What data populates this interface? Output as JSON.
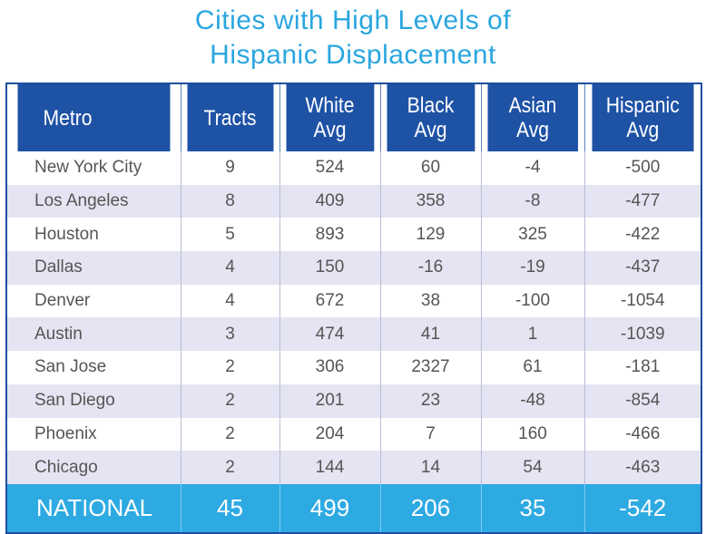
{
  "title": [
    "Cities with High Levels of",
    "Hispanic Displacement"
  ],
  "colors": {
    "title": "#2aa6df",
    "header": "#1e52a5",
    "national": "#2eaae2",
    "stripe": "#e4e4f2"
  },
  "chart_data": {
    "type": "table",
    "title": "Cities with High Levels of Hispanic Displacement",
    "columns": [
      "Metro",
      "Tracts",
      "White Avg",
      "Black Avg",
      "Asian Avg",
      "Hispanic Avg"
    ],
    "rows": [
      [
        "New York City",
        "9",
        "524",
        "60",
        "-4",
        "-500"
      ],
      [
        "Los Angeles",
        "8",
        "409",
        "358",
        "-8",
        "-477"
      ],
      [
        "Houston",
        "5",
        "893",
        "129",
        "325",
        "-422"
      ],
      [
        "Dallas",
        "4",
        "150",
        "-16",
        "-19",
        "-437"
      ],
      [
        "Denver",
        "4",
        "672",
        "38",
        "-100",
        "-1054"
      ],
      [
        "Austin",
        "3",
        "474",
        "41",
        "1",
        "-1039"
      ],
      [
        "San Jose",
        "2",
        "306",
        "2327",
        "61",
        "-181"
      ],
      [
        "San Diego",
        "2",
        "201",
        "23",
        "-48",
        "-854"
      ],
      [
        "Phoenix",
        "2",
        "204",
        "7",
        "160",
        "-466"
      ],
      [
        "Chicago",
        "2",
        "144",
        "14",
        "54",
        "-463"
      ]
    ],
    "total": [
      "NATIONAL",
      "45",
      "499",
      "206",
      "35",
      "-542"
    ]
  }
}
